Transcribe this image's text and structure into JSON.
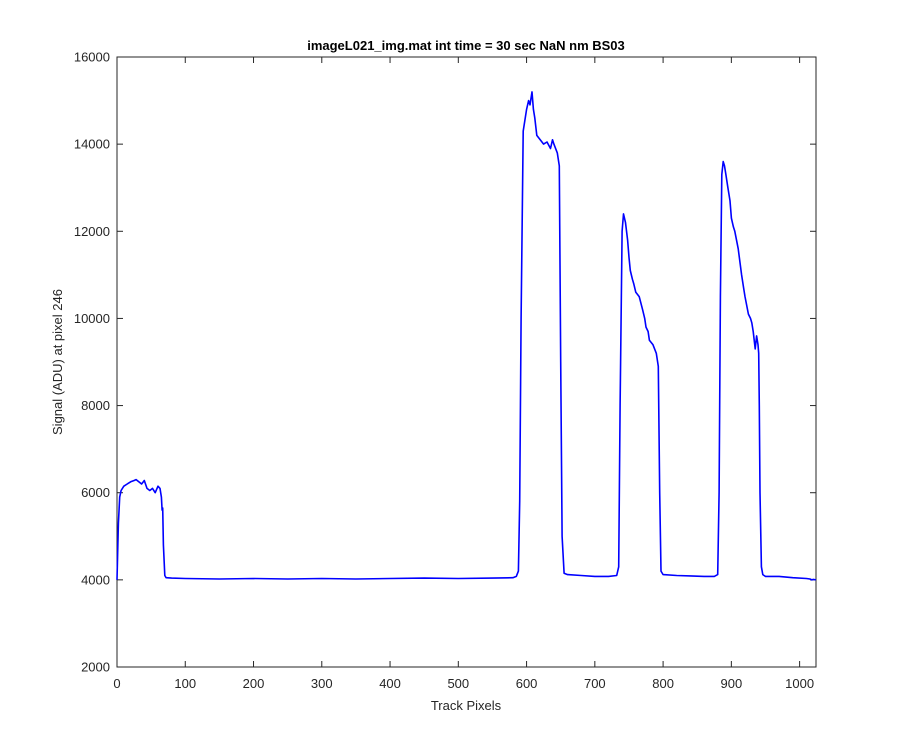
{
  "chart_data": {
    "type": "line",
    "title": "imageL021_img.mat int time = 30 sec  NaN nm BS03",
    "xlabel": "Track Pixels",
    "ylabel": "Signal (ADU) at pixel 246",
    "xlim": [
      0,
      1024
    ],
    "ylim": [
      2000,
      16000
    ],
    "xticks": [
      0,
      100,
      200,
      300,
      400,
      500,
      600,
      700,
      800,
      900,
      1000
    ],
    "yticks": [
      2000,
      4000,
      6000,
      8000,
      10000,
      12000,
      14000,
      16000
    ],
    "grid": false,
    "box": true,
    "line_color": "#0000ff",
    "series": [
      {
        "x": [
          0,
          2,
          4,
          6,
          10,
          15,
          20,
          25,
          28,
          32,
          36,
          40,
          44,
          48,
          52,
          56,
          60,
          63,
          65,
          66,
          67,
          68,
          70,
          72,
          80,
          100,
          150,
          200,
          250,
          300,
          350,
          400,
          450,
          500,
          550,
          580,
          585,
          588,
          590,
          592,
          595,
          600,
          603,
          605,
          608,
          610,
          612,
          615,
          620,
          625,
          630,
          635,
          638,
          640,
          645,
          648,
          650,
          652,
          655,
          660,
          680,
          700,
          720,
          732,
          735,
          737,
          740,
          742,
          745,
          748,
          750,
          752,
          755,
          757,
          760,
          765,
          770,
          773,
          775,
          778,
          780,
          785,
          790,
          793,
          795,
          797,
          800,
          820,
          840,
          860,
          875,
          880,
          882,
          884,
          886,
          888,
          890,
          892,
          895,
          898,
          900,
          903,
          905,
          910,
          915,
          918,
          920,
          925,
          928,
          930,
          932,
          935,
          937,
          939,
          940,
          941,
          942,
          944,
          946,
          948,
          950,
          970,
          990,
          1010,
          1015,
          1018,
          1020,
          1024
        ],
        "y": [
          4000,
          5300,
          5900,
          6050,
          6150,
          6200,
          6250,
          6280,
          6300,
          6250,
          6200,
          6280,
          6100,
          6050,
          6100,
          6000,
          6150,
          6100,
          5900,
          5600,
          5650,
          4800,
          4100,
          4050,
          4040,
          4030,
          4020,
          4030,
          4020,
          4030,
          4020,
          4030,
          4040,
          4030,
          4040,
          4050,
          4080,
          4200,
          5800,
          10000,
          14300,
          14800,
          15000,
          14900,
          15200,
          14800,
          14600,
          14200,
          14100,
          14000,
          14050,
          13900,
          14100,
          14000,
          13800,
          13500,
          9000,
          5000,
          4150,
          4120,
          4100,
          4080,
          4080,
          4100,
          4300,
          8000,
          12000,
          12400,
          12200,
          11800,
          11400,
          11100,
          10900,
          10800,
          10600,
          10500,
          10200,
          10000,
          9800,
          9700,
          9500,
          9400,
          9200,
          8900,
          6000,
          4200,
          4120,
          4100,
          4090,
          4080,
          4080,
          4120,
          6000,
          10500,
          13300,
          13600,
          13500,
          13300,
          13000,
          12700,
          12300,
          12100,
          12000,
          11600,
          11000,
          10700,
          10500,
          10100,
          10000,
          9900,
          9700,
          9300,
          9600,
          9400,
          9200,
          8000,
          6000,
          4300,
          4120,
          4100,
          4080,
          4080,
          4050,
          4030,
          4020,
          4000,
          4010,
          4000
        ]
      }
    ]
  }
}
